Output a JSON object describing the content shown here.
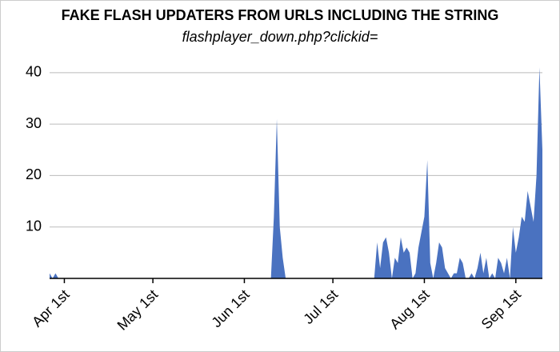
{
  "chart_data": {
    "type": "area",
    "title": "FAKE FLASH UPDATERS FROM URLS INCLUDING THE STRING",
    "subtitle": "flashplayer_down.php?clickid=",
    "color": "#4a72c0",
    "grid": true,
    "xlim": [
      "03-27",
      "09-10"
    ],
    "xticks": [
      {
        "value": "04-01",
        "label": "Apr 1st"
      },
      {
        "value": "05-01",
        "label": "May 1st"
      },
      {
        "value": "06-01",
        "label": "Jun 1st"
      },
      {
        "value": "07-01",
        "label": "Jul 1st"
      },
      {
        "value": "08-01",
        "label": "Aug 1st"
      },
      {
        "value": "09-01",
        "label": "Sep 1st"
      }
    ],
    "ylim": [
      0,
      42
    ],
    "yticks": [
      10,
      20,
      30,
      40
    ],
    "x": [
      "03-27",
      "03-28",
      "03-29",
      "03-30",
      "06-10",
      "06-11",
      "06-12",
      "06-13",
      "06-14",
      "06-15",
      "07-15",
      "07-16",
      "07-17",
      "07-18",
      "07-19",
      "07-20",
      "07-21",
      "07-22",
      "07-23",
      "07-24",
      "07-25",
      "07-26",
      "07-27",
      "07-28",
      "07-29",
      "07-30",
      "07-31",
      "08-01",
      "08-02",
      "08-03",
      "08-04",
      "08-05",
      "08-06",
      "08-07",
      "08-08",
      "08-09",
      "08-10",
      "08-11",
      "08-12",
      "08-13",
      "08-14",
      "08-15",
      "08-16",
      "08-17",
      "08-18",
      "08-19",
      "08-20",
      "08-21",
      "08-22",
      "08-23",
      "08-24",
      "08-25",
      "08-26",
      "08-27",
      "08-28",
      "08-29",
      "08-30",
      "08-31",
      "09-01",
      "09-02",
      "09-03",
      "09-04",
      "09-05",
      "09-06",
      "09-07",
      "09-08",
      "09-09",
      "09-10"
    ],
    "values": [
      1,
      0,
      1,
      0,
      0,
      12,
      31,
      10,
      4,
      0,
      0,
      7,
      2,
      7,
      8,
      5,
      0,
      4,
      3,
      8,
      5,
      6,
      5,
      0,
      1,
      6,
      9,
      12,
      23,
      3,
      0,
      3,
      7,
      6,
      2,
      1,
      0,
      1,
      1,
      4,
      3,
      0,
      0,
      1,
      0,
      2,
      5,
      1,
      4,
      0,
      1,
      0,
      4,
      3,
      1,
      4,
      0,
      10,
      5,
      8,
      12,
      11,
      17,
      14,
      11,
      20,
      41,
      25
    ]
  }
}
